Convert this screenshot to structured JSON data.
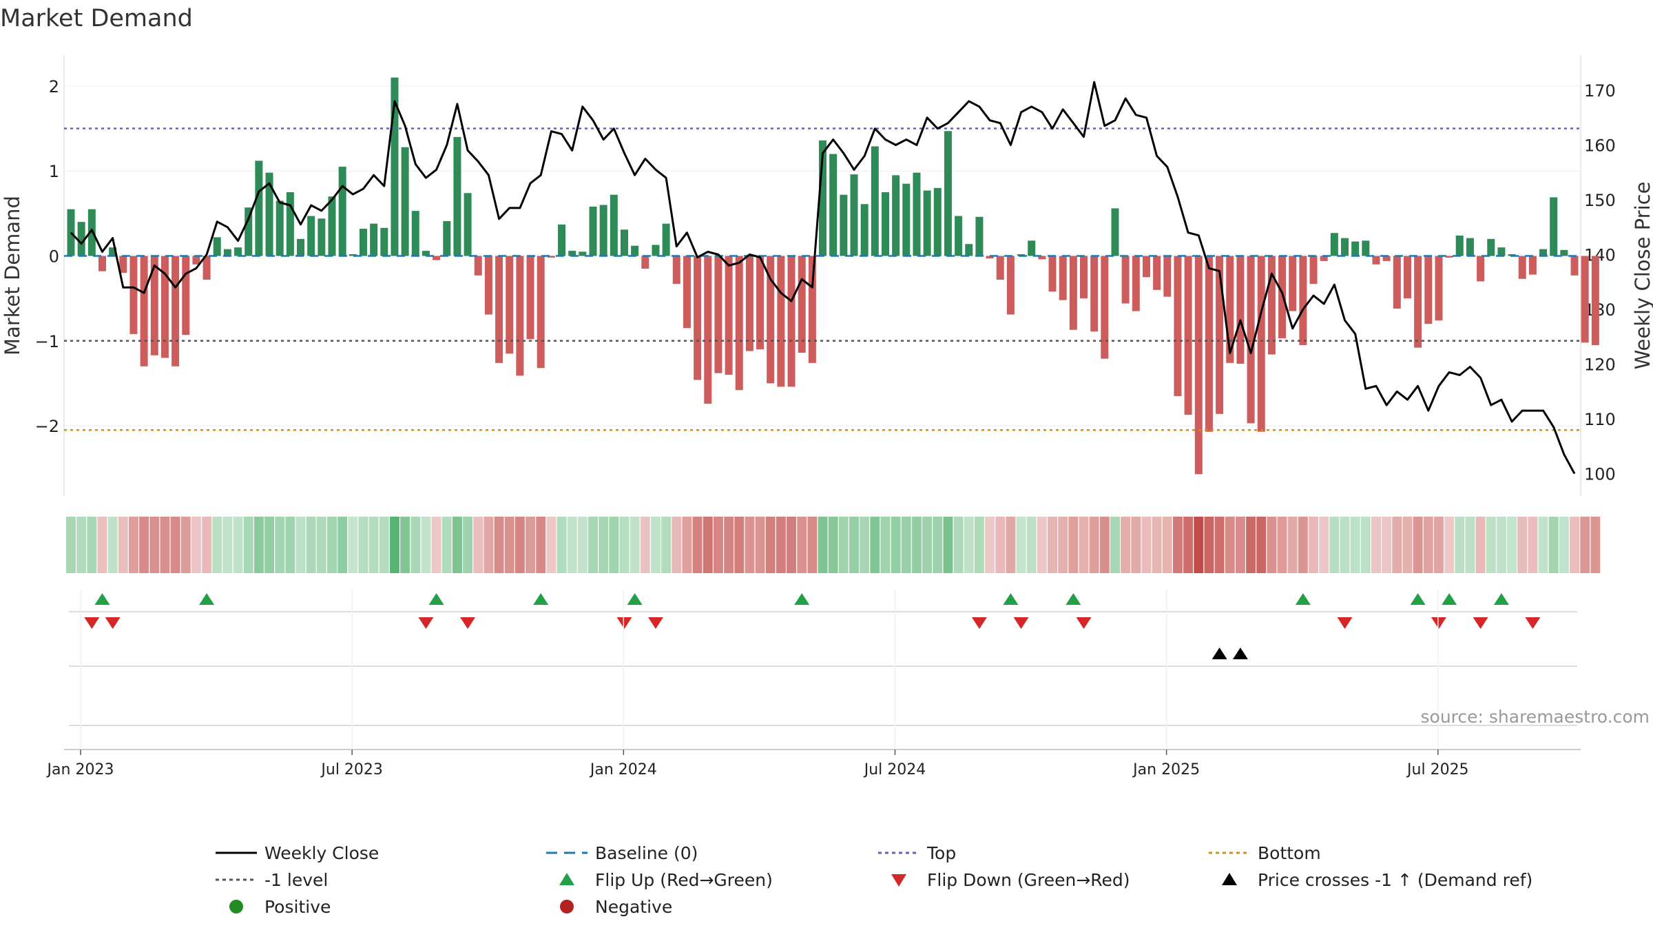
{
  "chart_data": {
    "type": "bar",
    "title": "Market Demand",
    "ylabel": "Market Demand",
    "y2label": "Weekly Close Price",
    "ylim": [
      -2.85,
      2.15
    ],
    "y2lim": [
      97,
      175
    ],
    "yticks": [
      {
        "v": 2,
        "label": "2"
      },
      {
        "v": 1,
        "label": "1"
      },
      {
        "v": 0,
        "label": "0"
      },
      {
        "v": -1,
        "label": "−1"
      },
      {
        "v": -2,
        "label": "−2"
      }
    ],
    "y2ticks": [
      {
        "v": 170,
        "label": "170"
      },
      {
        "v": 160,
        "label": "160"
      },
      {
        "v": 150,
        "label": "150"
      },
      {
        "v": 140,
        "label": "140"
      },
      {
        "v": 130,
        "label": "130"
      },
      {
        "v": 120,
        "label": "120"
      },
      {
        "v": 110,
        "label": "110"
      },
      {
        "v": 100,
        "label": "100"
      }
    ],
    "xticks": [
      {
        "week": 0,
        "label": "Jan 2023"
      },
      {
        "week": 26,
        "label": "Jul 2023"
      },
      {
        "week": 52,
        "label": "Jan 2024"
      },
      {
        "week": 78,
        "label": "Jul 2024"
      },
      {
        "week": 104,
        "label": "Jan 2025"
      },
      {
        "week": 130,
        "label": "Jul 2025"
      }
    ],
    "levels": {
      "top": 1.5,
      "bottom": -2.05,
      "minus_one": -1,
      "baseline": 0
    },
    "demand": [
      0.55,
      0.4,
      0.55,
      -0.18,
      0.1,
      -0.2,
      -0.92,
      -1.3,
      -1.17,
      -1.2,
      -1.3,
      -0.93,
      -0.1,
      -0.28,
      0.22,
      0.08,
      0.1,
      0.57,
      1.12,
      0.98,
      0.65,
      0.75,
      0.2,
      0.47,
      0.44,
      0.7,
      1.05,
      0.02,
      0.32,
      0.38,
      0.33,
      2.1,
      1.28,
      0.53,
      0.06,
      -0.05,
      0.41,
      1.4,
      0.74,
      -0.23,
      -0.69,
      -1.26,
      -1.15,
      -1.41,
      -0.98,
      -1.32,
      -0.02,
      0.37,
      0.06,
      0.05,
      0.58,
      0.6,
      0.72,
      0.31,
      0.12,
      -0.15,
      0.13,
      0.38,
      -0.33,
      -0.85,
      -1.46,
      -1.74,
      -1.38,
      -1.4,
      -1.58,
      -1.12,
      -1.1,
      -1.5,
      -1.54,
      -1.54,
      -1.14,
      -1.26,
      1.36,
      1.2,
      0.72,
      0.96,
      0.61,
      1.29,
      0.75,
      0.95,
      0.85,
      0.98,
      0.77,
      0.8,
      1.47,
      0.47,
      0.14,
      0.46,
      -0.03,
      -0.28,
      -0.69,
      0.02,
      0.18,
      -0.04,
      -0.42,
      -0.52,
      -0.87,
      -0.5,
      -0.89,
      -1.21,
      0.56,
      -0.56,
      -0.65,
      -0.25,
      -0.4,
      -0.48,
      -1.65,
      -1.87,
      -2.57,
      -2.07,
      -1.86,
      -1.26,
      -1.27,
      -1.97,
      -2.07,
      -1.16,
      -0.97,
      -0.65,
      -1.05,
      -0.33,
      -0.06,
      0.27,
      0.21,
      0.17,
      0.18,
      -0.1,
      -0.06,
      -0.62,
      -0.5,
      -1.08,
      -0.8,
      -0.76,
      -0.02,
      0.24,
      0.21,
      -0.3,
      0.2,
      0.1,
      0.02,
      -0.27,
      -0.22,
      0.08,
      0.69,
      0.07,
      -0.23,
      -1.02,
      -1.05
    ],
    "weekly_close": [
      144,
      142,
      144.5,
      140.5,
      143,
      134,
      134,
      133,
      138,
      136.5,
      134,
      136.5,
      137.5,
      140,
      146,
      145,
      142.5,
      146.5,
      151.5,
      153,
      149.5,
      149,
      145.5,
      149,
      148,
      150,
      152.5,
      151,
      152,
      154.5,
      152.5,
      168,
      163.5,
      156.5,
      154,
      155.5,
      160,
      167.5,
      159,
      157,
      154.5,
      146.5,
      148.5,
      148.5,
      153,
      154.5,
      162.5,
      162,
      159,
      167,
      164.5,
      161,
      163,
      158.5,
      154.5,
      157.5,
      155.5,
      154,
      141.5,
      144,
      139.5,
      140.5,
      140,
      138,
      138.5,
      140,
      139.5,
      135.5,
      133,
      131.5,
      135.5,
      134,
      158.5,
      161,
      158.5,
      155.5,
      158,
      163,
      161,
      160,
      161,
      160,
      165,
      163,
      164,
      166,
      168,
      167,
      164.5,
      164,
      160,
      166,
      167,
      166,
      163,
      166.5,
      164,
      161.5,
      171.5,
      163.5,
      164.5,
      168.5,
      165.5,
      165,
      158,
      156,
      150.5,
      144,
      143.5,
      137.5,
      137,
      122,
      128,
      122,
      129.5,
      136.5,
      133,
      126.5,
      130,
      132.5,
      131,
      134.5,
      128,
      125.5,
      115.5,
      116,
      112.5,
      115,
      113.5,
      116,
      111.5,
      116,
      118.5,
      118,
      119.5,
      117.5,
      112.5,
      113.5,
      109.5,
      111.5,
      111.5,
      111.5,
      108.5,
      103.5,
      100
    ],
    "flip_up_weeks": [
      3,
      13,
      35,
      45,
      54,
      70,
      90,
      96,
      118,
      129,
      132,
      137
    ],
    "flip_down_weeks": [
      2,
      4,
      34,
      38,
      53,
      56,
      87,
      91,
      97,
      122,
      131,
      135,
      140
    ],
    "price_cross_weeks": [
      110,
      112
    ],
    "source": "source: sharemaestro.com",
    "legend": {
      "position": "bottom",
      "items": [
        {
          "label": "Weekly Close",
          "key": "line-black"
        },
        {
          "label": "Baseline (0)",
          "key": "dash-blue"
        },
        {
          "label": "Top",
          "key": "dot-purple"
        },
        {
          "label": "Bottom",
          "key": "dot-orange"
        },
        {
          "label": "-1 level",
          "key": "dot-gray"
        },
        {
          "label": "Flip Up (Red→Green)",
          "key": "tri-up-green"
        },
        {
          "label": "Flip Down (Green→Red)",
          "key": "tri-down-red"
        },
        {
          "label": "Price crosses -1 ↑ (Demand ref)",
          "key": "tri-up-black"
        },
        {
          "label": "Positive",
          "key": "dot-green"
        },
        {
          "label": "Negative",
          "key": "dot-red"
        }
      ]
    },
    "colors": {
      "positive": "#2e8b57",
      "negative": "#cd5c5c",
      "line": "#000000",
      "baseline": "#1f77b4",
      "top": "#6a5acd",
      "bottom": "#d4900a",
      "minus_one": "#555555",
      "flip_up": "#22a046",
      "flip_down": "#d62728",
      "legend_positive": "#228b22",
      "legend_negative": "#b22222"
    }
  }
}
